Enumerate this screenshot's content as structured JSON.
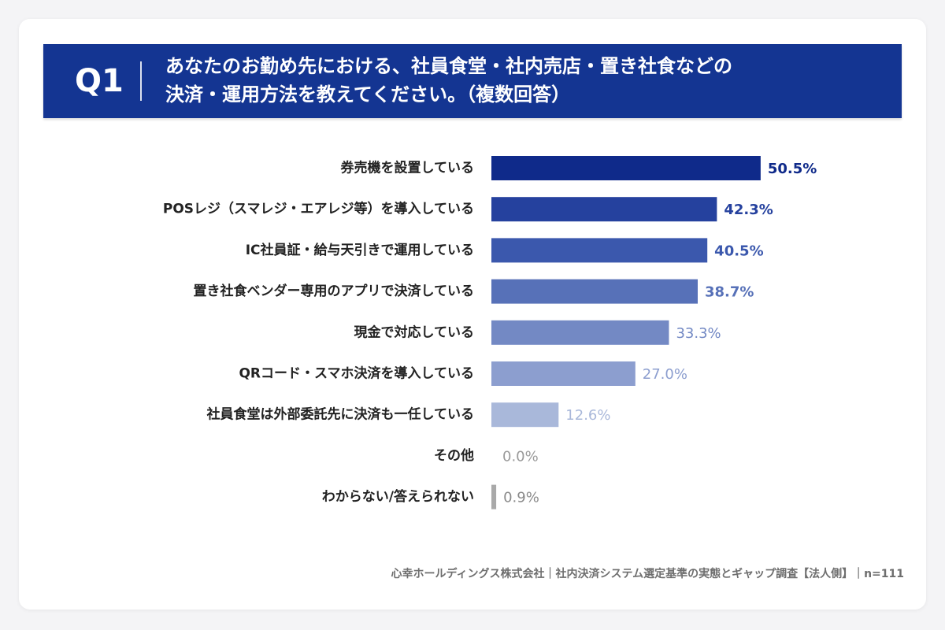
{
  "header": {
    "question_number": "Q1",
    "question_line1": "あなたのお勤め先における、社員食堂・社内売店・置き社食などの",
    "question_line2": "決済・運用方法を教えてください。（複数回答）"
  },
  "footer": {
    "text": "心幸ホールディングス株式会社｜社内決済システム選定基準の実態とギャップ調査【法人側】｜n=111"
  },
  "chart_data": {
    "type": "bar",
    "orientation": "horizontal",
    "value_suffix": "%",
    "categories": [
      "券売機を設置している",
      "POSレジ（スマレジ・エアレジ等）を導入している",
      "IC社員証・給与天引きで運用している",
      "置き社食ベンダー専用のアプリで決済している",
      "現金で対応している",
      "QRコード・スマホ決済を導入している",
      "社員食堂は外部委託先に決済も一任している",
      "その他",
      "わからない/答えられない"
    ],
    "values": [
      50.5,
      42.3,
      40.5,
      38.7,
      33.3,
      27.0,
      12.6,
      0.0,
      0.9
    ],
    "value_labels": [
      "50.5%",
      "42.3%",
      "40.5%",
      "38.7%",
      "33.3%",
      "27.0%",
      "12.6%",
      "0.0%",
      "0.9%"
    ],
    "bar_colors": [
      "#0f2a8a",
      "#25419e",
      "#3b58ad",
      "#5771b8",
      "#7389c4",
      "#8c9ecf",
      "#a9b8da",
      "#c6c6c6",
      "#a9a9a9"
    ],
    "label_colors": [
      "#0f2a8a",
      "#25419e",
      "#3b58ad",
      "#5771b8",
      "#7389c4",
      "#8c9ecf",
      "#a9b8da",
      "#9a9a9a",
      "#8a8a8a"
    ],
    "xlim": [
      0,
      100
    ],
    "grid": false,
    "legend": "none"
  },
  "colors": {
    "banner": "#143592",
    "category_text": "#222222",
    "footer_text": "#6e6e6e"
  }
}
